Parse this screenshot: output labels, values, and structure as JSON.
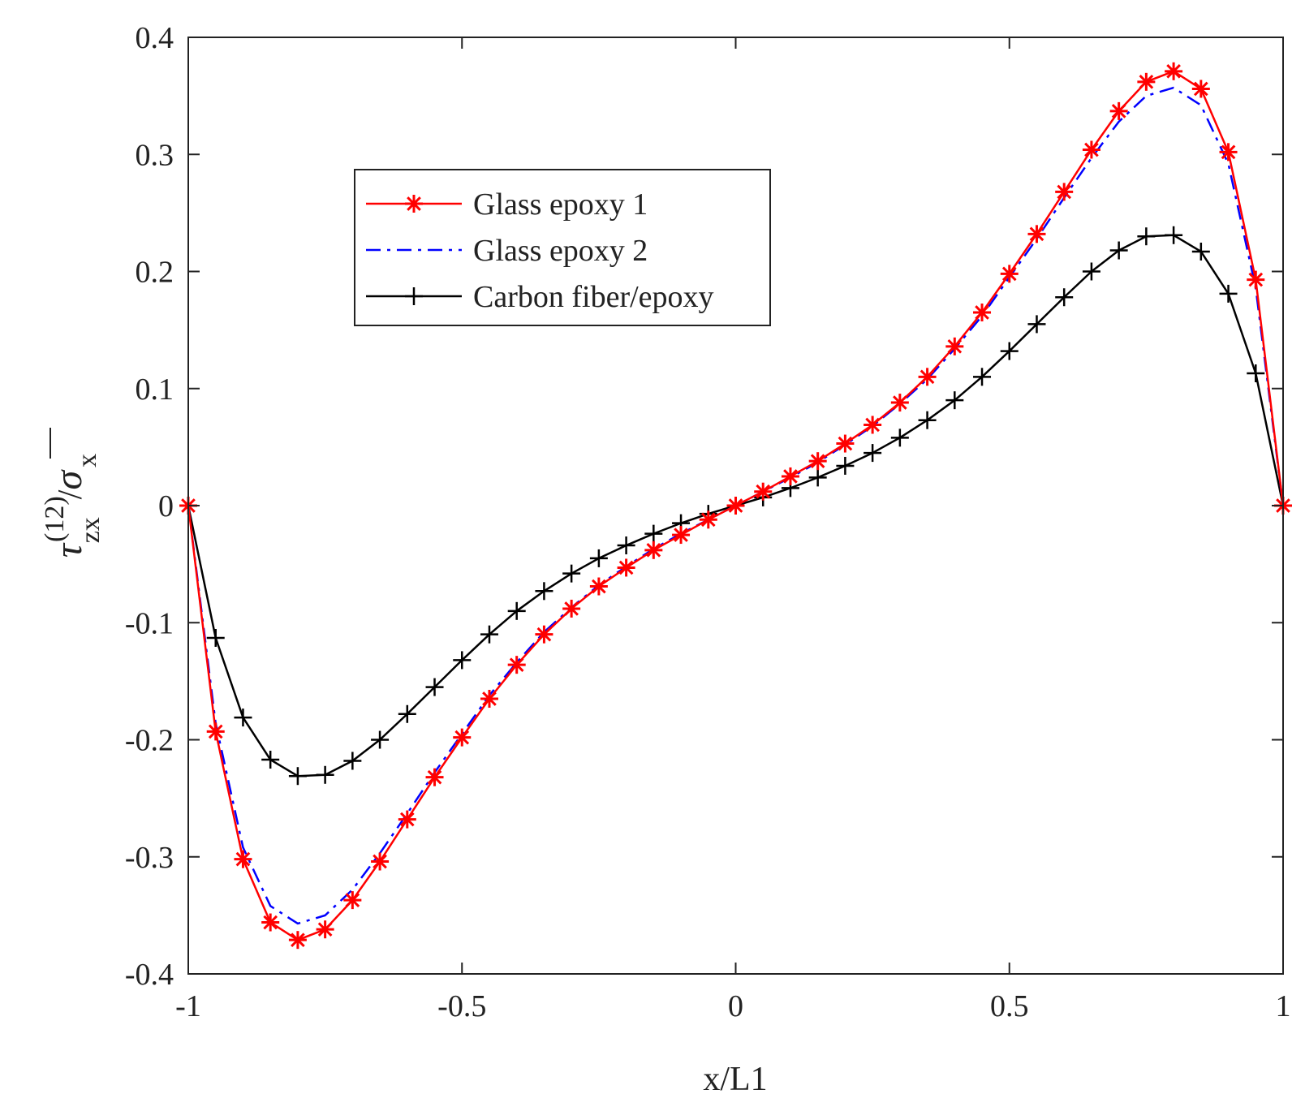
{
  "chart_data": {
    "type": "line",
    "title": "",
    "xlabel": "x/L1",
    "ylabel": {
      "base": "τ",
      "superscript": "(12)",
      "subscript": "zx",
      "divider": "/",
      "denominator": "σ",
      "denominator_subscript": "x"
    },
    "xlim": [
      -1,
      1
    ],
    "ylim": [
      -0.4,
      0.4
    ],
    "xticks": [
      -1,
      -0.5,
      0,
      0.5,
      1
    ],
    "xtick_labels": [
      "-1",
      "-0.5",
      "0",
      "0.5",
      "1"
    ],
    "yticks": [
      -0.4,
      -0.3,
      -0.2,
      -0.1,
      0,
      0.1,
      0.2,
      0.3,
      0.4
    ],
    "ytick_labels": [
      "-0.4",
      "-0.3",
      "-0.2",
      "-0.1",
      "0",
      "0.1",
      "0.2",
      "0.3",
      "0.4"
    ],
    "grid": false,
    "legend_position": "upper-left-center",
    "x": [
      -1,
      -0.95,
      -0.9,
      -0.85,
      -0.8,
      -0.75,
      -0.7,
      -0.65,
      -0.6,
      -0.55,
      -0.5,
      -0.45,
      -0.4,
      -0.35,
      -0.3,
      -0.25,
      -0.2,
      -0.15,
      -0.1,
      -0.05,
      0,
      0.05,
      0.1,
      0.15,
      0.2,
      0.25,
      0.3,
      0.35,
      0.4,
      0.45,
      0.5,
      0.55,
      0.6,
      0.65,
      0.7,
      0.75,
      0.8,
      0.85,
      0.9,
      0.95,
      1
    ],
    "series": [
      {
        "name": "Glass epoxy 1",
        "color": "#ff0000",
        "marker": "asterisk",
        "line": "solid",
        "values": [
          0,
          -0.193,
          -0.302,
          -0.356,
          -0.371,
          -0.362,
          -0.337,
          -0.304,
          -0.268,
          -0.232,
          -0.198,
          -0.165,
          -0.136,
          -0.11,
          -0.088,
          -0.069,
          -0.053,
          -0.038,
          -0.025,
          -0.012,
          0,
          0.012,
          0.025,
          0.038,
          0.053,
          0.069,
          0.088,
          0.11,
          0.136,
          0.165,
          0.198,
          0.232,
          0.268,
          0.304,
          0.337,
          0.362,
          0.371,
          0.356,
          0.302,
          0.193,
          0
        ]
      },
      {
        "name": "Glass epoxy 2",
        "color": "#0000ff",
        "marker": "none",
        "line": "dashdot",
        "values": [
          0,
          -0.186,
          -0.292,
          -0.342,
          -0.357,
          -0.35,
          -0.328,
          -0.297,
          -0.263,
          -0.228,
          -0.195,
          -0.162,
          -0.134,
          -0.108,
          -0.087,
          -0.068,
          -0.052,
          -0.037,
          -0.024,
          -0.012,
          0,
          0.012,
          0.024,
          0.037,
          0.052,
          0.068,
          0.087,
          0.108,
          0.134,
          0.162,
          0.195,
          0.228,
          0.263,
          0.297,
          0.328,
          0.35,
          0.357,
          0.342,
          0.292,
          0.186,
          0
        ]
      },
      {
        "name": "Carbon fiber/epoxy",
        "color": "#000000",
        "marker": "plus",
        "line": "solid",
        "values": [
          0,
          -0.113,
          -0.181,
          -0.217,
          -0.231,
          -0.23,
          -0.218,
          -0.2,
          -0.178,
          -0.155,
          -0.132,
          -0.11,
          -0.09,
          -0.073,
          -0.058,
          -0.045,
          -0.034,
          -0.024,
          -0.015,
          -0.007,
          0,
          0.007,
          0.015,
          0.024,
          0.034,
          0.045,
          0.058,
          0.073,
          0.09,
          0.11,
          0.132,
          0.155,
          0.178,
          0.2,
          0.218,
          0.23,
          0.231,
          0.217,
          0.181,
          0.113,
          0
        ]
      }
    ]
  }
}
